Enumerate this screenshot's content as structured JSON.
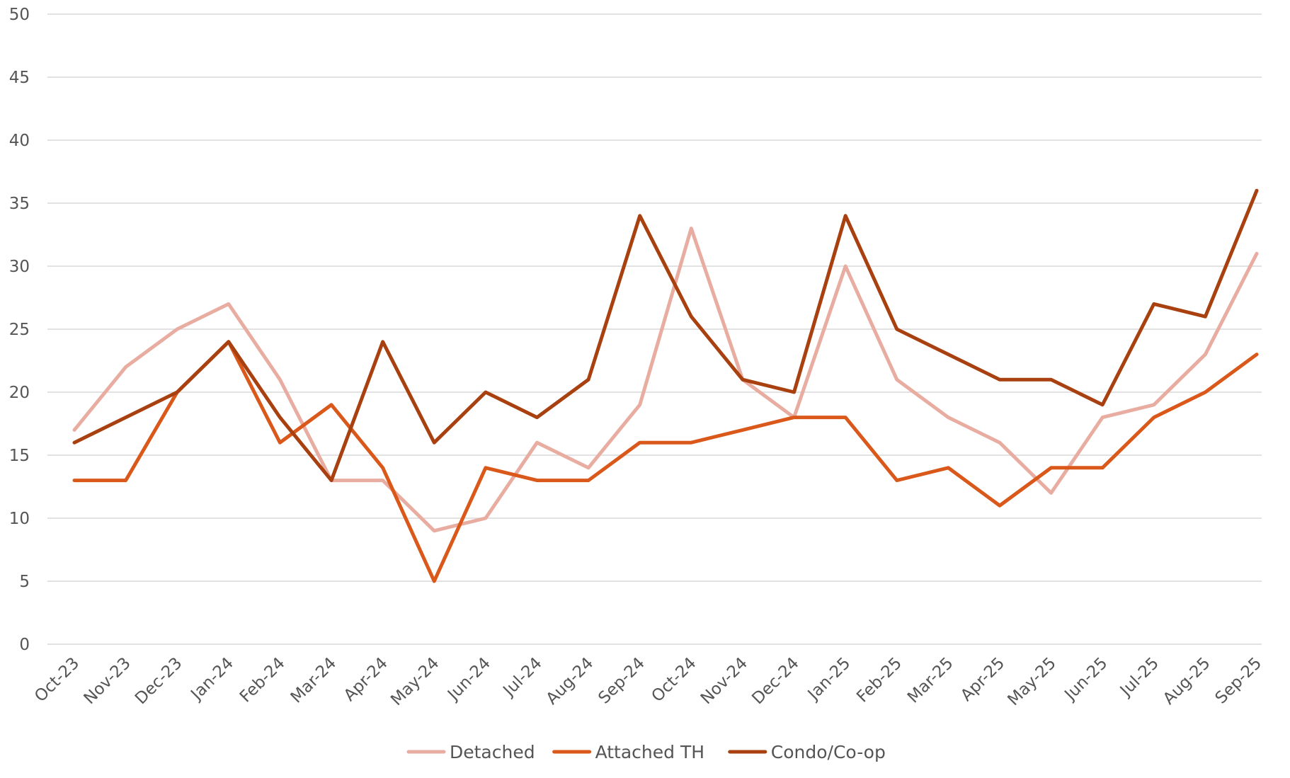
{
  "chart_data": {
    "type": "line",
    "title": "",
    "xlabel": "",
    "ylabel": "",
    "ylim": [
      0,
      50
    ],
    "yticks": [
      0,
      5,
      10,
      15,
      20,
      25,
      30,
      35,
      40,
      45,
      50
    ],
    "grid": true,
    "legend_position": "bottom-center",
    "categories": [
      "Oct-23",
      "Nov-23",
      "Dec-23",
      "Jan-24",
      "Feb-24",
      "Mar-24",
      "Apr-24",
      "May-24",
      "Jun-24",
      "Jul-24",
      "Aug-24",
      "Sep-24",
      "Oct-24",
      "Nov-24",
      "Dec-24",
      "Jan-25",
      "Feb-25",
      "Mar-25",
      "Apr-25",
      "May-25",
      "Jun-25",
      "Jul-25",
      "Aug-25",
      "Sep-25"
    ],
    "series": [
      {
        "name": "Detached",
        "color": "#e8aca0",
        "values": [
          17,
          22,
          25,
          27,
          21,
          13,
          13,
          9,
          10,
          16,
          14,
          19,
          33,
          21,
          18,
          30,
          21,
          18,
          16,
          12,
          18,
          19,
          23,
          31
        ]
      },
      {
        "name": "Attached TH",
        "color": "#d9581a",
        "values": [
          13,
          13,
          20,
          24,
          16,
          19,
          14,
          5,
          14,
          13,
          13,
          16,
          16,
          17,
          18,
          18,
          13,
          14,
          11,
          14,
          14,
          18,
          20,
          23
        ]
      },
      {
        "name": "Condo/Co-op",
        "color": "#a8400f",
        "values": [
          16,
          18,
          20,
          24,
          18,
          13,
          24,
          16,
          20,
          18,
          21,
          34,
          26,
          21,
          20,
          34,
          25,
          23,
          21,
          21,
          19,
          27,
          26,
          36
        ]
      }
    ]
  }
}
